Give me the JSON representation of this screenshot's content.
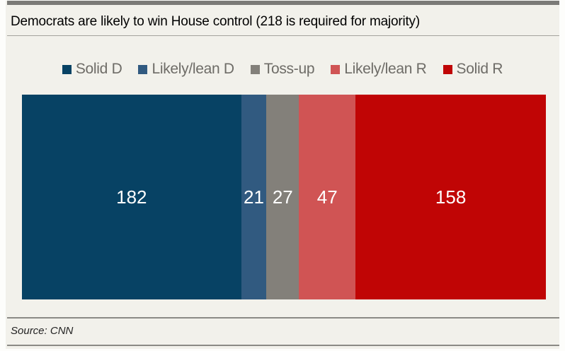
{
  "header": {
    "title": "Democrats are likely to win House control (218 is required for majority)"
  },
  "footer": {
    "source": "Source: CNN"
  },
  "colors": {
    "panel_background": "#f2f1eb",
    "top_accent_bar": "#7b7a77",
    "rule_gray": "#8b8a85",
    "title_text": "#000000",
    "legend_text": "#6e6c67",
    "value_label": "#ffffff"
  },
  "chart_data": {
    "type": "bar",
    "subtype": "single-stacked-horizontal",
    "title": "Democrats are likely to win House control (218 is required for majority)",
    "majority_required": 218,
    "legend_position": "top-center",
    "grid": false,
    "axes_visible": false,
    "series": [
      {
        "name": "Solid D",
        "value": 182,
        "color": "#074264"
      },
      {
        "name": "Likely/lean D",
        "value": 21,
        "color": "#315a80"
      },
      {
        "name": "Toss-up",
        "value": 27,
        "color": "#83807a"
      },
      {
        "name": "Likely/lean R",
        "value": 47,
        "color": "#d05454"
      },
      {
        "name": "Solid R",
        "value": 158,
        "color": "#c00505"
      }
    ],
    "source": "Source: CNN"
  }
}
